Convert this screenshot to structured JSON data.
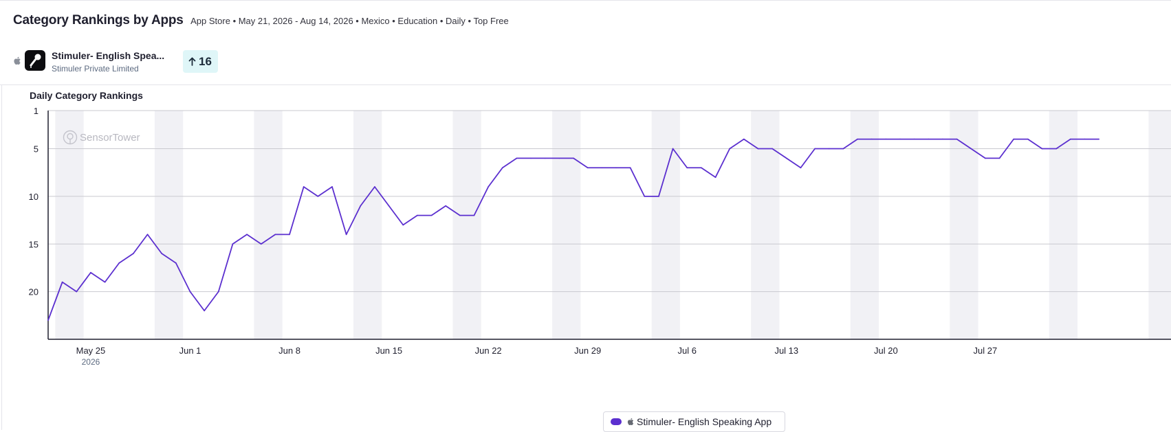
{
  "header": {
    "title": "Category Rankings by Apps",
    "filters": "App Store • May 21, 2026 - Aug 14, 2026 • Mexico • Education • Daily • Top Free"
  },
  "app": {
    "platform_icon": "apple-icon",
    "icon": "microphone-icon",
    "name": "Stimuler- English Spea...",
    "developer": "Stimuler Private Limited",
    "rank_change_icon": "arrow-up-icon",
    "rank_change": "16"
  },
  "chart_title": "Daily Category Rankings",
  "watermark": "SensorTower",
  "colors": {
    "series": "#5b2fcf",
    "weekend_band": "#f1f1f5",
    "badge_bg": "#dff6f8",
    "grid": "#c9c9cf"
  },
  "chart_data": {
    "type": "line",
    "y_reversed": true,
    "ylim": [
      1,
      25
    ],
    "yticks": [
      1,
      5,
      10,
      15,
      20
    ],
    "grid": true,
    "x_start": "2026-05-22",
    "xticks": [
      {
        "date": "2026-05-25",
        "label": "May 25",
        "sublabel": "2026"
      },
      {
        "date": "2026-06-01",
        "label": "Jun 1",
        "sublabel": ""
      },
      {
        "date": "2026-06-08",
        "label": "Jun 8",
        "sublabel": ""
      },
      {
        "date": "2026-06-15",
        "label": "Jun 15",
        "sublabel": ""
      },
      {
        "date": "2026-06-22",
        "label": "Jun 22",
        "sublabel": ""
      },
      {
        "date": "2026-06-29",
        "label": "Jun 29",
        "sublabel": ""
      },
      {
        "date": "2026-07-06",
        "label": "Jul 6",
        "sublabel": ""
      },
      {
        "date": "2026-07-13",
        "label": "Jul 13",
        "sublabel": ""
      },
      {
        "date": "2026-07-20",
        "label": "Jul 20",
        "sublabel": ""
      },
      {
        "date": "2026-07-27",
        "label": "Jul 27",
        "sublabel": ""
      }
    ],
    "legend_position": "bottom",
    "series": [
      {
        "name": "Stimuler- English Speaking App",
        "values": [
          23,
          19,
          20,
          18,
          19,
          17,
          16,
          14,
          16,
          17,
          20,
          22,
          20,
          15,
          14,
          15,
          14,
          14,
          9,
          10,
          9,
          14,
          11,
          9,
          11,
          13,
          12,
          12,
          11,
          12,
          12,
          9,
          7,
          6,
          6,
          6,
          6,
          6,
          7,
          7,
          7,
          7,
          10,
          10,
          5,
          7,
          7,
          8,
          5,
          4,
          5,
          5,
          6,
          7,
          5,
          5,
          5,
          4,
          4,
          4,
          4,
          4,
          4,
          4,
          4,
          5,
          6,
          6,
          4,
          4,
          5,
          5,
          4,
          4,
          4
        ]
      }
    ]
  }
}
